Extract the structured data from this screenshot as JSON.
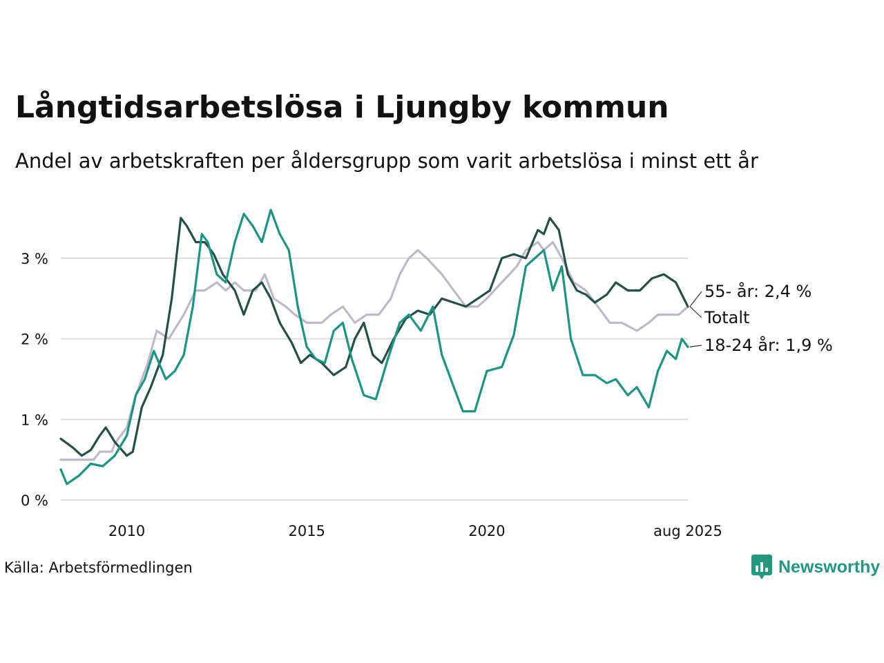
{
  "title": "Långtidsarbetslösa i Ljungby kommun",
  "subtitle": "Andel av arbetskraften per åldersgrupp som varit arbetslösa i minst ett år",
  "source": "Källa: Arbetsförmedlingen",
  "brand": "Newsworthy",
  "icons": {
    "brand_logo": "newsworthy-logo-icon"
  },
  "colors": {
    "total": "#bdb9c9",
    "age55": "#234f48",
    "age18_24": "#1a9484",
    "grid": "#dcdcdc",
    "brand": "#23977f"
  },
  "chart_data": {
    "type": "line",
    "x_type": "date",
    "xlim": [
      "2008-03",
      "2025-08"
    ],
    "ylim": [
      0,
      3.6
    ],
    "grid": true,
    "y_ticks": [
      {
        "value": 0,
        "label": "0 %"
      },
      {
        "value": 1,
        "label": "1 %"
      },
      {
        "value": 2,
        "label": "2 %"
      },
      {
        "value": 3,
        "label": "3 %"
      }
    ],
    "x_ticks": [
      {
        "value": "2010-01",
        "label": "2010"
      },
      {
        "value": "2015-01",
        "label": "2015"
      },
      {
        "value": "2020-01",
        "label": "2020"
      },
      {
        "value": "2025-08",
        "label": "aug 2025"
      }
    ],
    "series": [
      {
        "name": "Totalt",
        "end_label": "Totalt",
        "color": "#bdb9c9",
        "points": [
          [
            "2008-03",
            0.5
          ],
          [
            "2009-02",
            0.5
          ],
          [
            "2009-04",
            0.6
          ],
          [
            "2009-08",
            0.6
          ],
          [
            "2009-09",
            0.7
          ],
          [
            "2010-01",
            0.9
          ],
          [
            "2010-04",
            1.3
          ],
          [
            "2010-08",
            1.7
          ],
          [
            "2010-11",
            2.1
          ],
          [
            "2011-03",
            2.0
          ],
          [
            "2011-08",
            2.3
          ],
          [
            "2011-12",
            2.6
          ],
          [
            "2012-03",
            2.6
          ],
          [
            "2012-07",
            2.7
          ],
          [
            "2012-10",
            2.6
          ],
          [
            "2013-01",
            2.7
          ],
          [
            "2013-04",
            2.6
          ],
          [
            "2013-08",
            2.6
          ],
          [
            "2013-11",
            2.8
          ],
          [
            "2014-02",
            2.5
          ],
          [
            "2014-06",
            2.4
          ],
          [
            "2014-09",
            2.3
          ],
          [
            "2015-01",
            2.2
          ],
          [
            "2015-06",
            2.2
          ],
          [
            "2015-09",
            2.3
          ],
          [
            "2016-01",
            2.4
          ],
          [
            "2016-05",
            2.2
          ],
          [
            "2016-09",
            2.3
          ],
          [
            "2017-01",
            2.3
          ],
          [
            "2017-05",
            2.5
          ],
          [
            "2017-08",
            2.8
          ],
          [
            "2017-11",
            3.0
          ],
          [
            "2018-02",
            3.1
          ],
          [
            "2018-05",
            3.0
          ],
          [
            "2018-10",
            2.8
          ],
          [
            "2019-02",
            2.6
          ],
          [
            "2019-06",
            2.4
          ],
          [
            "2019-10",
            2.4
          ],
          [
            "2020-01",
            2.5
          ],
          [
            "2020-06",
            2.7
          ],
          [
            "2020-11",
            2.9
          ],
          [
            "2021-02",
            3.1
          ],
          [
            "2021-06",
            3.2
          ],
          [
            "2021-08",
            3.1
          ],
          [
            "2021-11",
            3.2
          ],
          [
            "2022-02",
            3.0
          ],
          [
            "2022-06",
            2.7
          ],
          [
            "2022-10",
            2.6
          ],
          [
            "2023-02",
            2.4
          ],
          [
            "2023-06",
            2.2
          ],
          [
            "2023-10",
            2.2
          ],
          [
            "2024-03",
            2.1
          ],
          [
            "2024-07",
            2.2
          ],
          [
            "2024-10",
            2.3
          ],
          [
            "2025-02",
            2.3
          ],
          [
            "2025-05",
            2.3
          ],
          [
            "2025-08",
            2.4
          ]
        ]
      },
      {
        "name": "55- år",
        "end_label": "55- år: 2,4 %",
        "color": "#234f48",
        "points": [
          [
            "2008-03",
            0.76
          ],
          [
            "2008-07",
            0.65
          ],
          [
            "2008-10",
            0.55
          ],
          [
            "2009-01",
            0.62
          ],
          [
            "2009-04",
            0.8
          ],
          [
            "2009-06",
            0.9
          ],
          [
            "2009-09",
            0.72
          ],
          [
            "2010-01",
            0.55
          ],
          [
            "2010-03",
            0.6
          ],
          [
            "2010-06",
            1.15
          ],
          [
            "2010-09",
            1.4
          ],
          [
            "2011-01",
            1.8
          ],
          [
            "2011-04",
            2.5
          ],
          [
            "2011-07",
            3.5
          ],
          [
            "2011-09",
            3.4
          ],
          [
            "2011-12",
            3.2
          ],
          [
            "2012-03",
            3.2
          ],
          [
            "2012-06",
            3.05
          ],
          [
            "2012-09",
            2.8
          ],
          [
            "2013-01",
            2.6
          ],
          [
            "2013-04",
            2.3
          ],
          [
            "2013-07",
            2.6
          ],
          [
            "2013-10",
            2.7
          ],
          [
            "2014-01",
            2.5
          ],
          [
            "2014-04",
            2.2
          ],
          [
            "2014-08",
            1.95
          ],
          [
            "2014-11",
            1.7
          ],
          [
            "2015-02",
            1.8
          ],
          [
            "2015-06",
            1.7
          ],
          [
            "2015-10",
            1.55
          ],
          [
            "2016-02",
            1.65
          ],
          [
            "2016-05",
            2.0
          ],
          [
            "2016-08",
            2.2
          ],
          [
            "2016-11",
            1.8
          ],
          [
            "2017-02",
            1.7
          ],
          [
            "2017-06",
            2.0
          ],
          [
            "2017-10",
            2.25
          ],
          [
            "2018-02",
            2.35
          ],
          [
            "2018-06",
            2.3
          ],
          [
            "2018-10",
            2.5
          ],
          [
            "2019-02",
            2.45
          ],
          [
            "2019-06",
            2.4
          ],
          [
            "2019-10",
            2.5
          ],
          [
            "2020-02",
            2.6
          ],
          [
            "2020-06",
            3.0
          ],
          [
            "2020-10",
            3.05
          ],
          [
            "2021-02",
            3.0
          ],
          [
            "2021-06",
            3.35
          ],
          [
            "2021-08",
            3.3
          ],
          [
            "2021-10",
            3.5
          ],
          [
            "2022-01",
            3.35
          ],
          [
            "2022-04",
            2.8
          ],
          [
            "2022-07",
            2.6
          ],
          [
            "2022-10",
            2.55
          ],
          [
            "2023-01",
            2.45
          ],
          [
            "2023-05",
            2.55
          ],
          [
            "2023-08",
            2.7
          ],
          [
            "2023-12",
            2.6
          ],
          [
            "2024-04",
            2.6
          ],
          [
            "2024-08",
            2.75
          ],
          [
            "2024-12",
            2.8
          ],
          [
            "2025-04",
            2.7
          ],
          [
            "2025-08",
            2.4
          ]
        ]
      },
      {
        "name": "18-24 år",
        "end_label": "18-24 år: 1,9 %",
        "color": "#1a9484",
        "points": [
          [
            "2008-03",
            0.38
          ],
          [
            "2008-05",
            0.2
          ],
          [
            "2008-09",
            0.3
          ],
          [
            "2009-01",
            0.45
          ],
          [
            "2009-05",
            0.42
          ],
          [
            "2009-09",
            0.55
          ],
          [
            "2010-01",
            0.8
          ],
          [
            "2010-04",
            1.3
          ],
          [
            "2010-07",
            1.5
          ],
          [
            "2010-10",
            1.85
          ],
          [
            "2011-02",
            1.5
          ],
          [
            "2011-05",
            1.6
          ],
          [
            "2011-08",
            1.8
          ],
          [
            "2011-11",
            2.4
          ],
          [
            "2012-02",
            3.3
          ],
          [
            "2012-04",
            3.2
          ],
          [
            "2012-07",
            2.8
          ],
          [
            "2012-10",
            2.7
          ],
          [
            "2013-01",
            3.2
          ],
          [
            "2013-04",
            3.55
          ],
          [
            "2013-07",
            3.4
          ],
          [
            "2013-10",
            3.2
          ],
          [
            "2014-01",
            3.6
          ],
          [
            "2014-04",
            3.3
          ],
          [
            "2014-07",
            3.1
          ],
          [
            "2014-10",
            2.4
          ],
          [
            "2015-01",
            1.9
          ],
          [
            "2015-04",
            1.75
          ],
          [
            "2015-07",
            1.7
          ],
          [
            "2015-10",
            2.1
          ],
          [
            "2016-01",
            2.2
          ],
          [
            "2016-04",
            1.75
          ],
          [
            "2016-08",
            1.3
          ],
          [
            "2016-12",
            1.25
          ],
          [
            "2017-04",
            1.75
          ],
          [
            "2017-08",
            2.2
          ],
          [
            "2017-11",
            2.3
          ],
          [
            "2018-03",
            2.1
          ],
          [
            "2018-07",
            2.4
          ],
          [
            "2018-10",
            1.8
          ],
          [
            "2019-02",
            1.4
          ],
          [
            "2019-05",
            1.1
          ],
          [
            "2019-09",
            1.1
          ],
          [
            "2020-01",
            1.6
          ],
          [
            "2020-06",
            1.65
          ],
          [
            "2020-10",
            2.05
          ],
          [
            "2021-02",
            2.9
          ],
          [
            "2021-05",
            3.0
          ],
          [
            "2021-08",
            3.1
          ],
          [
            "2021-11",
            2.6
          ],
          [
            "2022-02",
            2.9
          ],
          [
            "2022-05",
            2.0
          ],
          [
            "2022-09",
            1.55
          ],
          [
            "2023-01",
            1.55
          ],
          [
            "2023-05",
            1.45
          ],
          [
            "2023-08",
            1.5
          ],
          [
            "2023-12",
            1.3
          ],
          [
            "2024-03",
            1.4
          ],
          [
            "2024-07",
            1.15
          ],
          [
            "2024-10",
            1.6
          ],
          [
            "2025-01",
            1.85
          ],
          [
            "2025-04",
            1.75
          ],
          [
            "2025-06",
            2.0
          ],
          [
            "2025-08",
            1.9
          ]
        ]
      }
    ]
  }
}
